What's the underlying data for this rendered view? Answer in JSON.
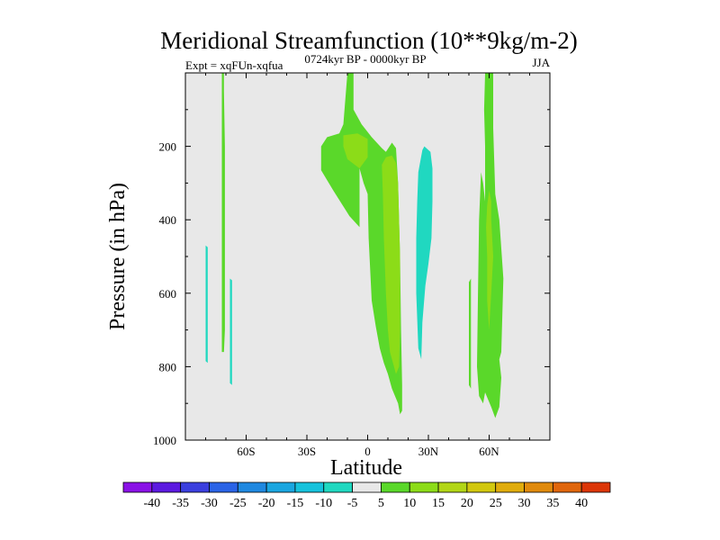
{
  "chart_data": {
    "type": "contour",
    "title": "Meridional Streamfunction (10**9kg/m-2)",
    "subtitle_left": "Expt = xqFUn-xqfua",
    "subtitle_center": "0724kyr BP - 0000kyr BP",
    "subtitle_right": "JJA",
    "xlabel": "Latitude",
    "ylabel": "Pressure (in hPa)",
    "xlim": [
      -90,
      90
    ],
    "ylim": [
      1000,
      0
    ],
    "x_ticks": [
      {
        "value": -60,
        "label": "60S"
      },
      {
        "value": -30,
        "label": "30S"
      },
      {
        "value": 0,
        "label": "0"
      },
      {
        "value": 30,
        "label": "30N"
      },
      {
        "value": 60,
        "label": "60N"
      }
    ],
    "y_ticks": [
      {
        "value": 200,
        "label": "200"
      },
      {
        "value": 400,
        "label": "400"
      },
      {
        "value": 600,
        "label": "600"
      },
      {
        "value": 800,
        "label": "800"
      },
      {
        "value": 1000,
        "label": "1000"
      }
    ],
    "colorbar": {
      "labels": [
        "-40",
        "-35",
        "-30",
        "-25",
        "-20",
        "-15",
        "-10",
        "-5",
        "5",
        "10",
        "15",
        "20",
        "25",
        "30",
        "35",
        "40"
      ],
      "colors": [
        "#8a12e6",
        "#5c1ae0",
        "#3b3fde",
        "#2a63e6",
        "#1f88e0",
        "#1aa6e0",
        "#16c2dc",
        "#20d8c0",
        "#e8e8e8",
        "#5ad82a",
        "#8cdc18",
        "#b2d616",
        "#d2c80e",
        "#e0ac0c",
        "#e08a0c",
        "#e0660c",
        "#dc3608"
      ]
    },
    "background_color": "#e8e8e8",
    "regions": [
      {
        "level": "5 to 10",
        "color": "#5ad82a",
        "pts": [
          [
            -72,
            1
          ],
          [
            -71,
            1
          ],
          [
            -71,
            50
          ],
          [
            -70.5,
            200
          ],
          [
            -70.5,
            400
          ],
          [
            -70.5,
            700
          ],
          [
            -71,
            760
          ],
          [
            -72,
            760
          ],
          [
            -72,
            500
          ],
          [
            -72,
            200
          ]
        ]
      },
      {
        "level": "5 to 10",
        "color": "#5ad82a",
        "pts": [
          [
            -10,
            1
          ],
          [
            -7,
            1
          ],
          [
            -7,
            100
          ],
          [
            -3,
            140
          ],
          [
            2,
            175
          ],
          [
            7,
            205
          ],
          [
            9,
            215
          ],
          [
            12,
            190
          ],
          [
            14,
            205
          ],
          [
            15,
            300
          ],
          [
            16,
            500
          ],
          [
            16.5,
            700
          ],
          [
            17,
            850
          ],
          [
            17,
            920
          ],
          [
            16,
            930
          ],
          [
            15,
            900
          ],
          [
            12,
            860
          ],
          [
            10,
            820
          ],
          [
            8,
            790
          ],
          [
            6,
            750
          ],
          [
            4,
            690
          ],
          [
            2,
            620
          ],
          [
            0.5,
            450
          ],
          [
            0,
            330
          ],
          [
            -2,
            300
          ],
          [
            -4,
            260
          ],
          [
            -4,
            420
          ],
          [
            -9,
            390
          ],
          [
            -17,
            320
          ],
          [
            -23,
            265
          ],
          [
            -23,
            200
          ],
          [
            -20,
            175
          ],
          [
            -14,
            165
          ],
          [
            -12,
            140
          ]
        ]
      },
      {
        "level": "10 to 15",
        "color": "#8cdc18",
        "pts": [
          [
            -12,
            170
          ],
          [
            -5,
            165
          ],
          [
            0,
            180
          ],
          [
            0,
            230
          ],
          [
            -4,
            260
          ],
          [
            -10,
            235
          ],
          [
            -12,
            200
          ]
        ]
      },
      {
        "level": "10 to 15",
        "color": "#8cdc18",
        "pts": [
          [
            7,
            250
          ],
          [
            9,
            230
          ],
          [
            12,
            225
          ],
          [
            14,
            245
          ],
          [
            15,
            300
          ],
          [
            16,
            500
          ],
          [
            16,
            700
          ],
          [
            15.5,
            800
          ],
          [
            14,
            820
          ],
          [
            11,
            760
          ],
          [
            10,
            700
          ],
          [
            9,
            600
          ],
          [
            8,
            450
          ],
          [
            7.5,
            330
          ]
        ]
      },
      {
        "level": "5 to 10",
        "color": "#5ad82a",
        "pts": [
          [
            50,
            570
          ],
          [
            51,
            560
          ],
          [
            51,
            860
          ],
          [
            50,
            850
          ]
        ]
      },
      {
        "level": "5 to 10",
        "color": "#5ad82a",
        "pts": [
          [
            58,
            1
          ],
          [
            62,
            1
          ],
          [
            62,
            150
          ],
          [
            63,
            330
          ],
          [
            65,
            400
          ],
          [
            67,
            560
          ],
          [
            66,
            760
          ],
          [
            65,
            780
          ],
          [
            66,
            830
          ],
          [
            65,
            910
          ],
          [
            63,
            940
          ],
          [
            61,
            910
          ],
          [
            58,
            870
          ],
          [
            57,
            900
          ],
          [
            55,
            880
          ],
          [
            54,
            800
          ],
          [
            54.5,
            600
          ],
          [
            55,
            400
          ],
          [
            56,
            270
          ],
          [
            57,
            300
          ],
          [
            58,
            350
          ],
          [
            58,
            200
          ],
          [
            57.5,
            100
          ]
        ]
      },
      {
        "level": "10 to 15",
        "color": "#8cdc18",
        "pts": [
          [
            59,
            360
          ],
          [
            60,
            320
          ],
          [
            61,
            350
          ],
          [
            61,
            400
          ],
          [
            62,
            500
          ],
          [
            61,
            600
          ],
          [
            60,
            700
          ],
          [
            59,
            620
          ],
          [
            59,
            500
          ],
          [
            58.5,
            420
          ]
        ]
      },
      {
        "level": "-10 to -5",
        "color": "#20d8c0",
        "pts": [
          [
            -80,
            470
          ],
          [
            -79,
            475
          ],
          [
            -79,
            790
          ],
          [
            -80,
            785
          ]
        ]
      },
      {
        "level": "-10 to -5",
        "color": "#20d8c0",
        "pts": [
          [
            -68,
            560
          ],
          [
            -67,
            565
          ],
          [
            -67,
            850
          ],
          [
            -68,
            845
          ]
        ]
      },
      {
        "level": "-10 to -5",
        "color": "#20d8c0",
        "pts": [
          [
            25,
            270
          ],
          [
            27,
            210
          ],
          [
            28,
            200
          ],
          [
            31,
            215
          ],
          [
            32,
            260
          ],
          [
            32,
            350
          ],
          [
            31.5,
            450
          ],
          [
            30,
            520
          ],
          [
            28.5,
            580
          ],
          [
            27,
            680
          ],
          [
            26.5,
            780
          ],
          [
            25,
            750
          ],
          [
            24,
            600
          ],
          [
            24,
            450
          ],
          [
            24.5,
            350
          ]
        ]
      }
    ]
  }
}
